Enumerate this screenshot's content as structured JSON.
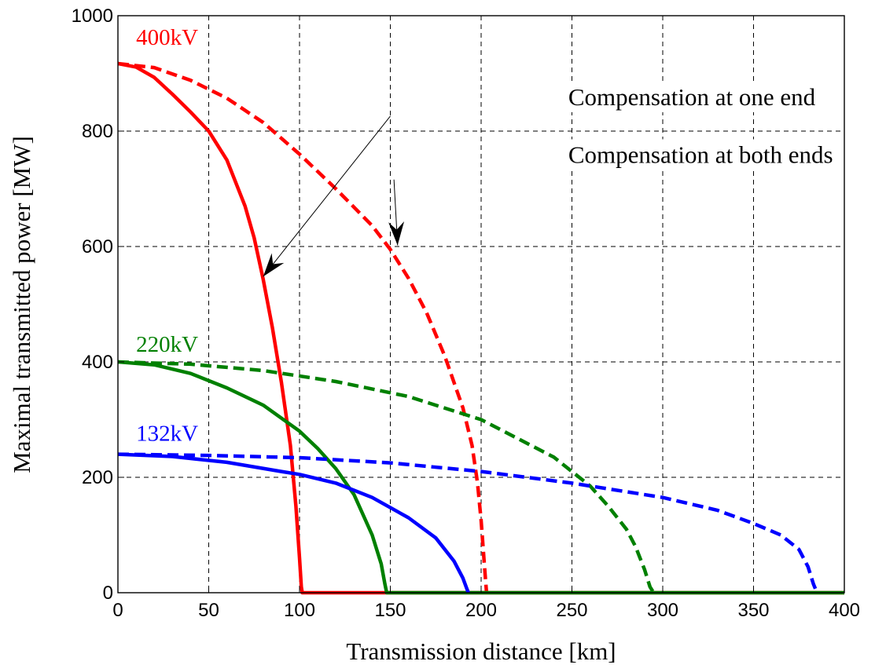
{
  "chart_data": {
    "type": "line",
    "xlabel": "Transmission distance [km]",
    "ylabel": "Maximal transmitted power [MW]",
    "xlim": [
      0,
      400
    ],
    "ylim": [
      0,
      1000
    ],
    "xticks": [
      0,
      50,
      100,
      150,
      200,
      250,
      300,
      350,
      400
    ],
    "yticks": [
      0,
      200,
      400,
      600,
      800,
      1000
    ],
    "grid": true,
    "labels": [
      {
        "id": "l400",
        "text": "400kV",
        "color": "#ff0000",
        "x": 10,
        "y": 950
      },
      {
        "id": "l220",
        "text": "220kV",
        "color": "#008000",
        "x": 10,
        "y": 418
      },
      {
        "id": "l132",
        "text": "132kV",
        "color": "#0000ff",
        "x": 10,
        "y": 263
      }
    ],
    "annotations": [
      {
        "id": "one-end",
        "text": "Compensation at one end",
        "text_x": 248,
        "text_y": 845,
        "arrow_from": [
          150,
          826
        ],
        "arrow_to": [
          80,
          548
        ]
      },
      {
        "id": "both-ends",
        "text": "Compensation at both ends",
        "text_x": 248,
        "text_y": 745,
        "arrow_from": [
          152,
          716
        ],
        "arrow_to": [
          154,
          602
        ]
      }
    ],
    "series": [
      {
        "id": "400kV-one-end",
        "color": "#ff0000",
        "style": "solid",
        "x": [
          0,
          10,
          20,
          30,
          40,
          50,
          60,
          70,
          75,
          80,
          85,
          90,
          95,
          98,
          100,
          101,
          101.5,
          400
        ],
        "y": [
          917,
          911,
          893,
          864,
          833,
          800,
          750,
          670,
          615,
          543,
          460,
          365,
          255,
          150,
          60,
          10,
          0,
          0
        ]
      },
      {
        "id": "400kV-both-ends",
        "color": "#ff0000",
        "style": "dashed",
        "x": [
          0,
          20,
          40,
          60,
          80,
          100,
          120,
          140,
          150,
          160,
          170,
          180,
          190,
          195,
          198,
          200,
          202,
          203
        ],
        "y": [
          917,
          910,
          888,
          857,
          815,
          760,
          700,
          636,
          595,
          545,
          485,
          410,
          320,
          255,
          190,
          125,
          40,
          0
        ]
      },
      {
        "id": "220kV-one-end",
        "color": "#008000",
        "style": "solid",
        "x": [
          0,
          20,
          40,
          60,
          80,
          100,
          110,
          120,
          130,
          140,
          145,
          147,
          148,
          400
        ],
        "y": [
          400,
          395,
          380,
          355,
          325,
          280,
          250,
          215,
          170,
          100,
          50,
          15,
          0,
          0
        ]
      },
      {
        "id": "220kV-both-ends",
        "color": "#008000",
        "style": "dashed",
        "x": [
          0,
          40,
          80,
          120,
          160,
          200,
          240,
          260,
          270,
          280,
          285,
          290,
          293,
          295
        ],
        "y": [
          400,
          396,
          385,
          366,
          340,
          300,
          235,
          185,
          150,
          110,
          80,
          40,
          10,
          0
        ]
      },
      {
        "id": "132kV-one-end",
        "color": "#0000ff",
        "style": "solid",
        "x": [
          0,
          30,
          60,
          90,
          100,
          120,
          140,
          160,
          175,
          185,
          190,
          192,
          193
        ],
        "y": [
          240,
          236,
          226,
          210,
          205,
          190,
          165,
          130,
          95,
          55,
          25,
          8,
          0
        ]
      },
      {
        "id": "132kV-both-ends",
        "color": "#0000ff",
        "style": "dashed",
        "x": [
          0,
          50,
          100,
          150,
          200,
          250,
          300,
          330,
          350,
          365,
          375,
          380,
          383,
          385
        ],
        "y": [
          240,
          238,
          234,
          225,
          210,
          190,
          165,
          143,
          120,
          100,
          75,
          45,
          15,
          0
        ]
      }
    ]
  }
}
